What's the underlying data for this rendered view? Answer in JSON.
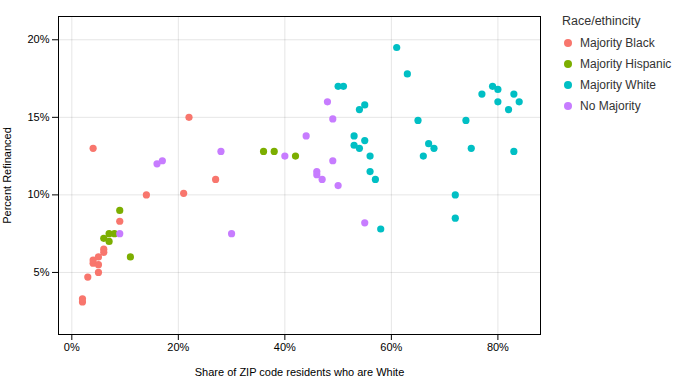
{
  "chart_data": {
    "type": "scatter",
    "xlabel": "Share of ZIP code residents who are White",
    "ylabel": "Percent Refinanced",
    "legend_title": "Race/ethincity",
    "legend": "right",
    "grid": true,
    "xlim": [
      -0.025,
      0.88
    ],
    "ylim": [
      0.01,
      0.215
    ],
    "xticks": [
      {
        "value": 0.0,
        "label": "0%"
      },
      {
        "value": 0.2,
        "label": "20%"
      },
      {
        "value": 0.4,
        "label": "40%"
      },
      {
        "value": 0.6,
        "label": "60%"
      },
      {
        "value": 0.8,
        "label": "80%"
      }
    ],
    "yticks": [
      {
        "value": 0.05,
        "label": "5%"
      },
      {
        "value": 0.1,
        "label": "10%"
      },
      {
        "value": 0.15,
        "label": "15%"
      },
      {
        "value": 0.2,
        "label": "20%"
      }
    ],
    "series": [
      {
        "name": "Majority Black",
        "color": "#F8766D",
        "x": [
          0.02,
          0.02,
          0.03,
          0.04,
          0.04,
          0.05,
          0.05,
          0.05,
          0.06,
          0.06,
          0.09,
          0.14,
          0.21,
          0.22,
          0.27,
          0.04
        ],
        "values": [
          0.031,
          0.033,
          0.047,
          0.056,
          0.058,
          0.06,
          0.055,
          0.05,
          0.065,
          0.063,
          0.083,
          0.1,
          0.101,
          0.15,
          0.11,
          0.13
        ]
      },
      {
        "name": "Majority Hispanic",
        "color": "#7CAE00",
        "x": [
          0.06,
          0.07,
          0.07,
          0.08,
          0.09,
          0.11,
          0.36,
          0.38,
          0.42
        ],
        "values": [
          0.072,
          0.07,
          0.075,
          0.075,
          0.09,
          0.06,
          0.128,
          0.128,
          0.125
        ]
      },
      {
        "name": "Majority White",
        "color": "#00BFC4",
        "x": [
          0.5,
          0.51,
          0.53,
          0.53,
          0.54,
          0.54,
          0.55,
          0.55,
          0.56,
          0.56,
          0.57,
          0.58,
          0.61,
          0.63,
          0.65,
          0.66,
          0.67,
          0.68,
          0.72,
          0.72,
          0.74,
          0.75,
          0.77,
          0.79,
          0.8,
          0.8,
          0.82,
          0.83,
          0.83,
          0.84
        ],
        "values": [
          0.17,
          0.17,
          0.138,
          0.132,
          0.13,
          0.155,
          0.158,
          0.135,
          0.115,
          0.125,
          0.11,
          0.078,
          0.195,
          0.178,
          0.148,
          0.125,
          0.133,
          0.13,
          0.085,
          0.1,
          0.148,
          0.13,
          0.165,
          0.17,
          0.168,
          0.16,
          0.155,
          0.165,
          0.128,
          0.16
        ]
      },
      {
        "name": "No Majority",
        "color": "#C77CFF",
        "x": [
          0.09,
          0.16,
          0.17,
          0.28,
          0.3,
          0.4,
          0.44,
          0.46,
          0.46,
          0.47,
          0.48,
          0.49,
          0.49,
          0.5,
          0.55
        ],
        "values": [
          0.075,
          0.12,
          0.122,
          0.128,
          0.075,
          0.125,
          0.138,
          0.115,
          0.113,
          0.11,
          0.16,
          0.149,
          0.122,
          0.106,
          0.082
        ]
      }
    ]
  }
}
